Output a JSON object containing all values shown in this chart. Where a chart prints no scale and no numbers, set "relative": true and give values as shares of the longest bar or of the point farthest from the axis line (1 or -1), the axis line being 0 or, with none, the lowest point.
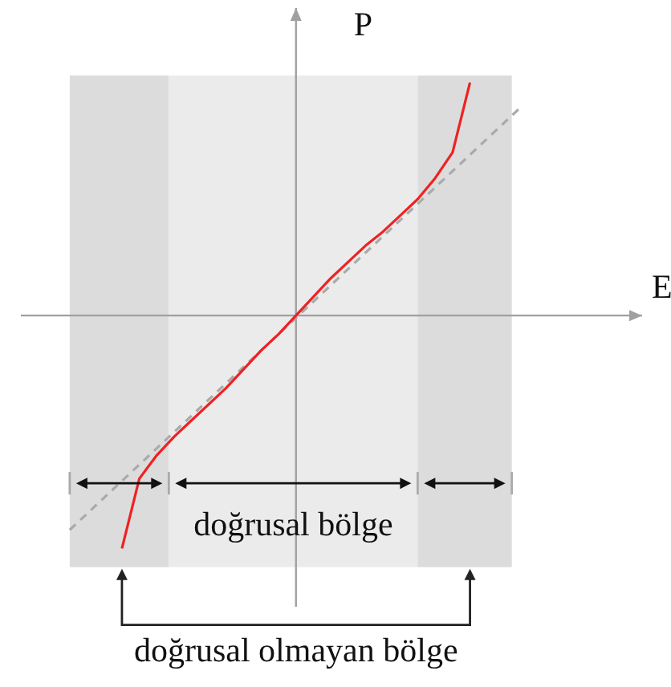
{
  "chart_data": {
    "type": "line",
    "xlabel": "E",
    "ylabel": "P",
    "relative": true,
    "categories": [
      null,
      null,
      null,
      null,
      null,
      null,
      null,
      null,
      null,
      null,
      null,
      null,
      null,
      null,
      null,
      null,
      null,
      null,
      null,
      null,
      null,
      null,
      null,
      null,
      null,
      null,
      null
    ],
    "series": [
      {
        "color": "#aaaaaa",
        "line_style": "dashed",
        "values": [
          -0.92,
          -0.85,
          -0.78,
          -0.71,
          -0.64,
          -0.57,
          -0.5,
          -0.43,
          -0.36,
          -0.29,
          -0.22,
          -0.15,
          -0.08,
          -0.01,
          0.06,
          0.13,
          0.2,
          0.27,
          0.34,
          0.41,
          0.48,
          0.55,
          0.62,
          0.69,
          0.76,
          0.83,
          0.9
        ]
      },
      {
        "color": "#ee2222",
        "line_style": "solid",
        "values": [
          null,
          null,
          null,
          -1.0,
          -0.7,
          -0.6,
          -0.52,
          -0.45,
          -0.38,
          -0.31,
          -0.23,
          -0.15,
          -0.08,
          0,
          0.08,
          0.16,
          0.23,
          0.3,
          0.36,
          0.43,
          0.5,
          0.59,
          0.7,
          1.0,
          null,
          null,
          null
        ]
      }
    ],
    "annotations": [
      "doğrusal bölge",
      "doğrusal olmayan bölge"
    ]
  }
}
